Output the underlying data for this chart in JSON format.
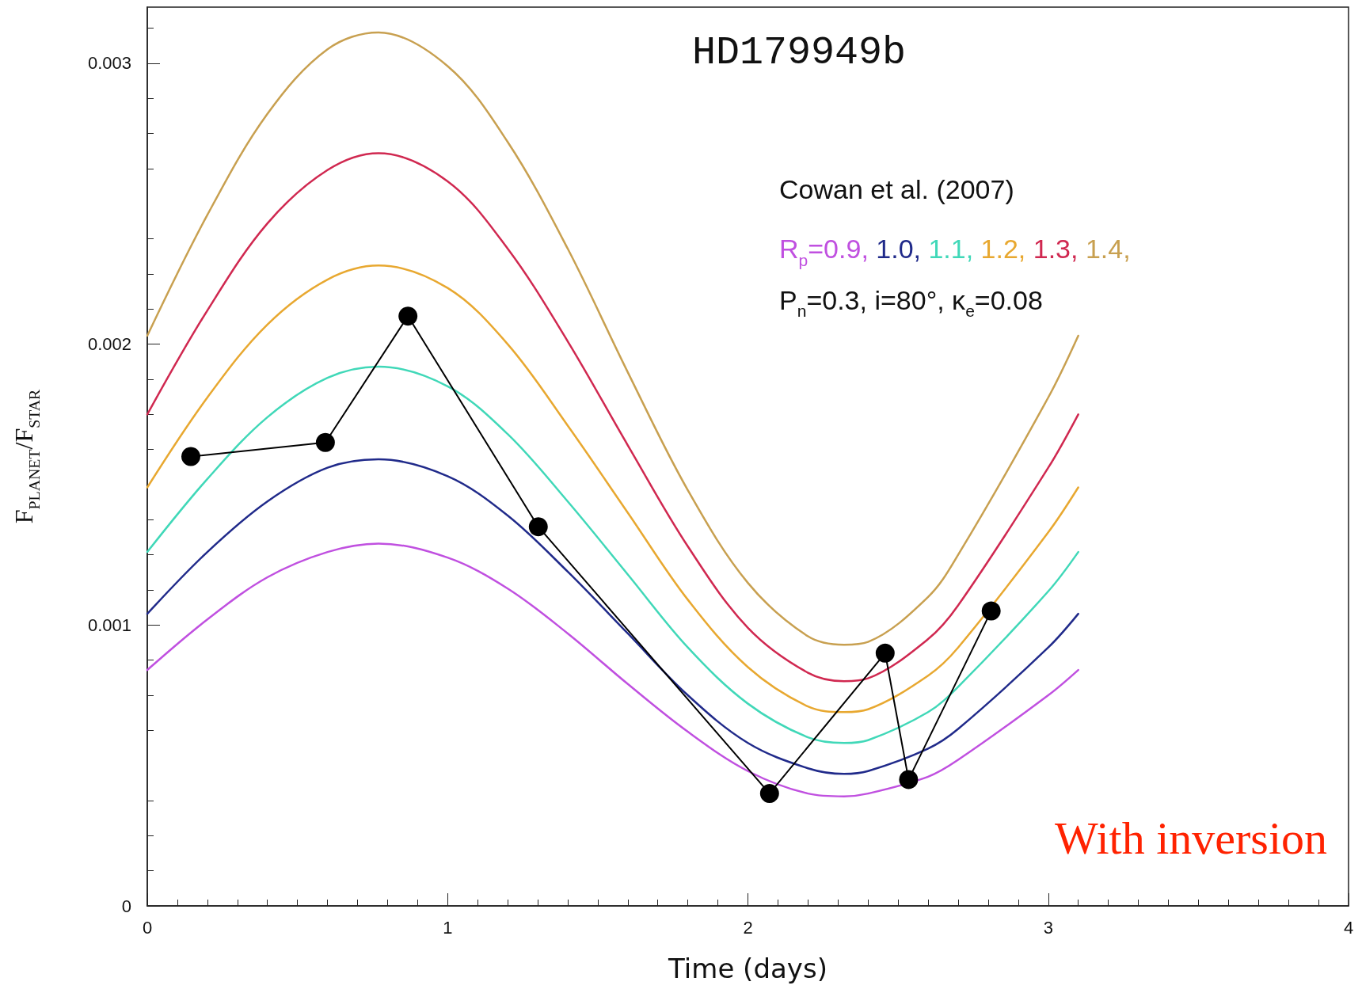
{
  "chart_data": {
    "type": "line",
    "title": "HD179949b",
    "xlabel": "Time (days)",
    "ylabel": "F$_{PLANET}$/F$_{STAR}$",
    "annotations": [
      "Cowan et al. (2007)",
      "P$_{n}$=0.3, i=80°, κ$_{e}$=0.08",
      "With inversion"
    ],
    "xlim": [
      0,
      4
    ],
    "xticks": [
      0,
      1,
      2,
      3,
      4
    ],
    "ylim": [
      0,
      0.0032
    ],
    "yticks": [
      0,
      0.001,
      0.002,
      0.003
    ],
    "grid": false,
    "legend": false,
    "line_style": "solid",
    "series": [
      {
        "name": "R$_{p}$=0.9,",
        "color": "#c050e0",
        "marker": "none",
        "x": [
          0,
          0.2,
          0.4,
          0.6,
          0.77,
          1.0,
          1.2,
          1.4,
          1.6,
          1.8,
          2.0,
          2.2,
          2.32,
          2.4,
          2.6,
          2.7,
          3.0,
          3.1
        ],
        "values": [
          0.00084,
          0.00102,
          0.00117,
          0.00126,
          0.00129,
          0.00124,
          0.00113,
          0.00097,
          0.00079,
          0.00062,
          0.00048,
          0.0004,
          0.00039,
          0.0004,
          0.00046,
          0.00052,
          0.00075,
          0.00084
        ]
      },
      {
        "name": "1.0,",
        "color": "#202a8a",
        "marker": "none",
        "x": [
          0,
          0.2,
          0.4,
          0.6,
          0.77,
          1.0,
          1.2,
          1.4,
          1.6,
          1.8,
          2.0,
          2.2,
          2.32,
          2.4,
          2.6,
          2.7,
          3.0,
          3.1
        ],
        "values": [
          0.00104,
          0.00126,
          0.00144,
          0.00156,
          0.00159,
          0.00153,
          0.00139,
          0.00119,
          0.00097,
          0.00075,
          0.00058,
          0.00049,
          0.00047,
          0.00048,
          0.00056,
          0.00063,
          0.00092,
          0.00104
        ]
      },
      {
        "name": "1.1,",
        "color": "#40d8b8",
        "marker": "none",
        "x": [
          0,
          0.2,
          0.4,
          0.6,
          0.77,
          1.0,
          1.2,
          1.4,
          1.6,
          1.8,
          2.0,
          2.2,
          2.32,
          2.4,
          2.6,
          2.7,
          3.0,
          3.1
        ],
        "values": [
          0.00126,
          0.00152,
          0.00174,
          0.00188,
          0.00192,
          0.00185,
          0.00168,
          0.00144,
          0.00118,
          0.00092,
          0.00072,
          0.0006,
          0.00058,
          0.00059,
          0.00069,
          0.00078,
          0.00112,
          0.00126
        ]
      },
      {
        "name": "1.2,",
        "color": "#e8a830",
        "marker": "none",
        "x": [
          0,
          0.2,
          0.4,
          0.6,
          0.77,
          1.0,
          1.2,
          1.4,
          1.6,
          1.8,
          2.0,
          2.2,
          2.32,
          2.4,
          2.6,
          2.7,
          3.0,
          3.1
        ],
        "values": [
          0.00149,
          0.00181,
          0.00207,
          0.00223,
          0.00228,
          0.0022,
          0.002,
          0.00171,
          0.0014,
          0.00109,
          0.00085,
          0.00071,
          0.00069,
          0.0007,
          0.00082,
          0.00092,
          0.00133,
          0.00149
        ]
      },
      {
        "name": "1.3,",
        "color": "#d02850",
        "marker": "none",
        "x": [
          0,
          0.2,
          0.4,
          0.6,
          0.77,
          1.0,
          1.2,
          1.4,
          1.6,
          1.8,
          2.0,
          2.2,
          2.32,
          2.4,
          2.6,
          2.7,
          3.0,
          3.1
        ],
        "values": [
          0.00175,
          0.00212,
          0.00243,
          0.00262,
          0.00268,
          0.00258,
          0.00234,
          0.00201,
          0.00164,
          0.00128,
          0.00099,
          0.00083,
          0.0008,
          0.00081,
          0.00095,
          0.00107,
          0.00156,
          0.00175
        ]
      },
      {
        "name": "1.4,",
        "color": "#c8a050",
        "marker": "none",
        "x": [
          0,
          0.2,
          0.4,
          0.6,
          0.77,
          1.0,
          1.2,
          1.4,
          1.6,
          1.8,
          2.0,
          2.2,
          2.32,
          2.4,
          2.6,
          2.7,
          3.0,
          3.1
        ],
        "values": [
          0.00203,
          0.00246,
          0.00282,
          0.00305,
          0.00311,
          0.00299,
          0.00272,
          0.00234,
          0.0019,
          0.00148,
          0.00115,
          0.00096,
          0.00093,
          0.00094,
          0.0011,
          0.00125,
          0.00181,
          0.00203
        ]
      },
      {
        "color": "#000000",
        "marker": "circle",
        "x": [
          0.145,
          0.593,
          0.868,
          1.302,
          2.072,
          2.457,
          2.535,
          2.81
        ],
        "values": [
          0.0016,
          0.00165,
          0.0021,
          0.00135,
          0.0004,
          0.0009,
          0.00045,
          0.00105
        ]
      }
    ]
  }
}
